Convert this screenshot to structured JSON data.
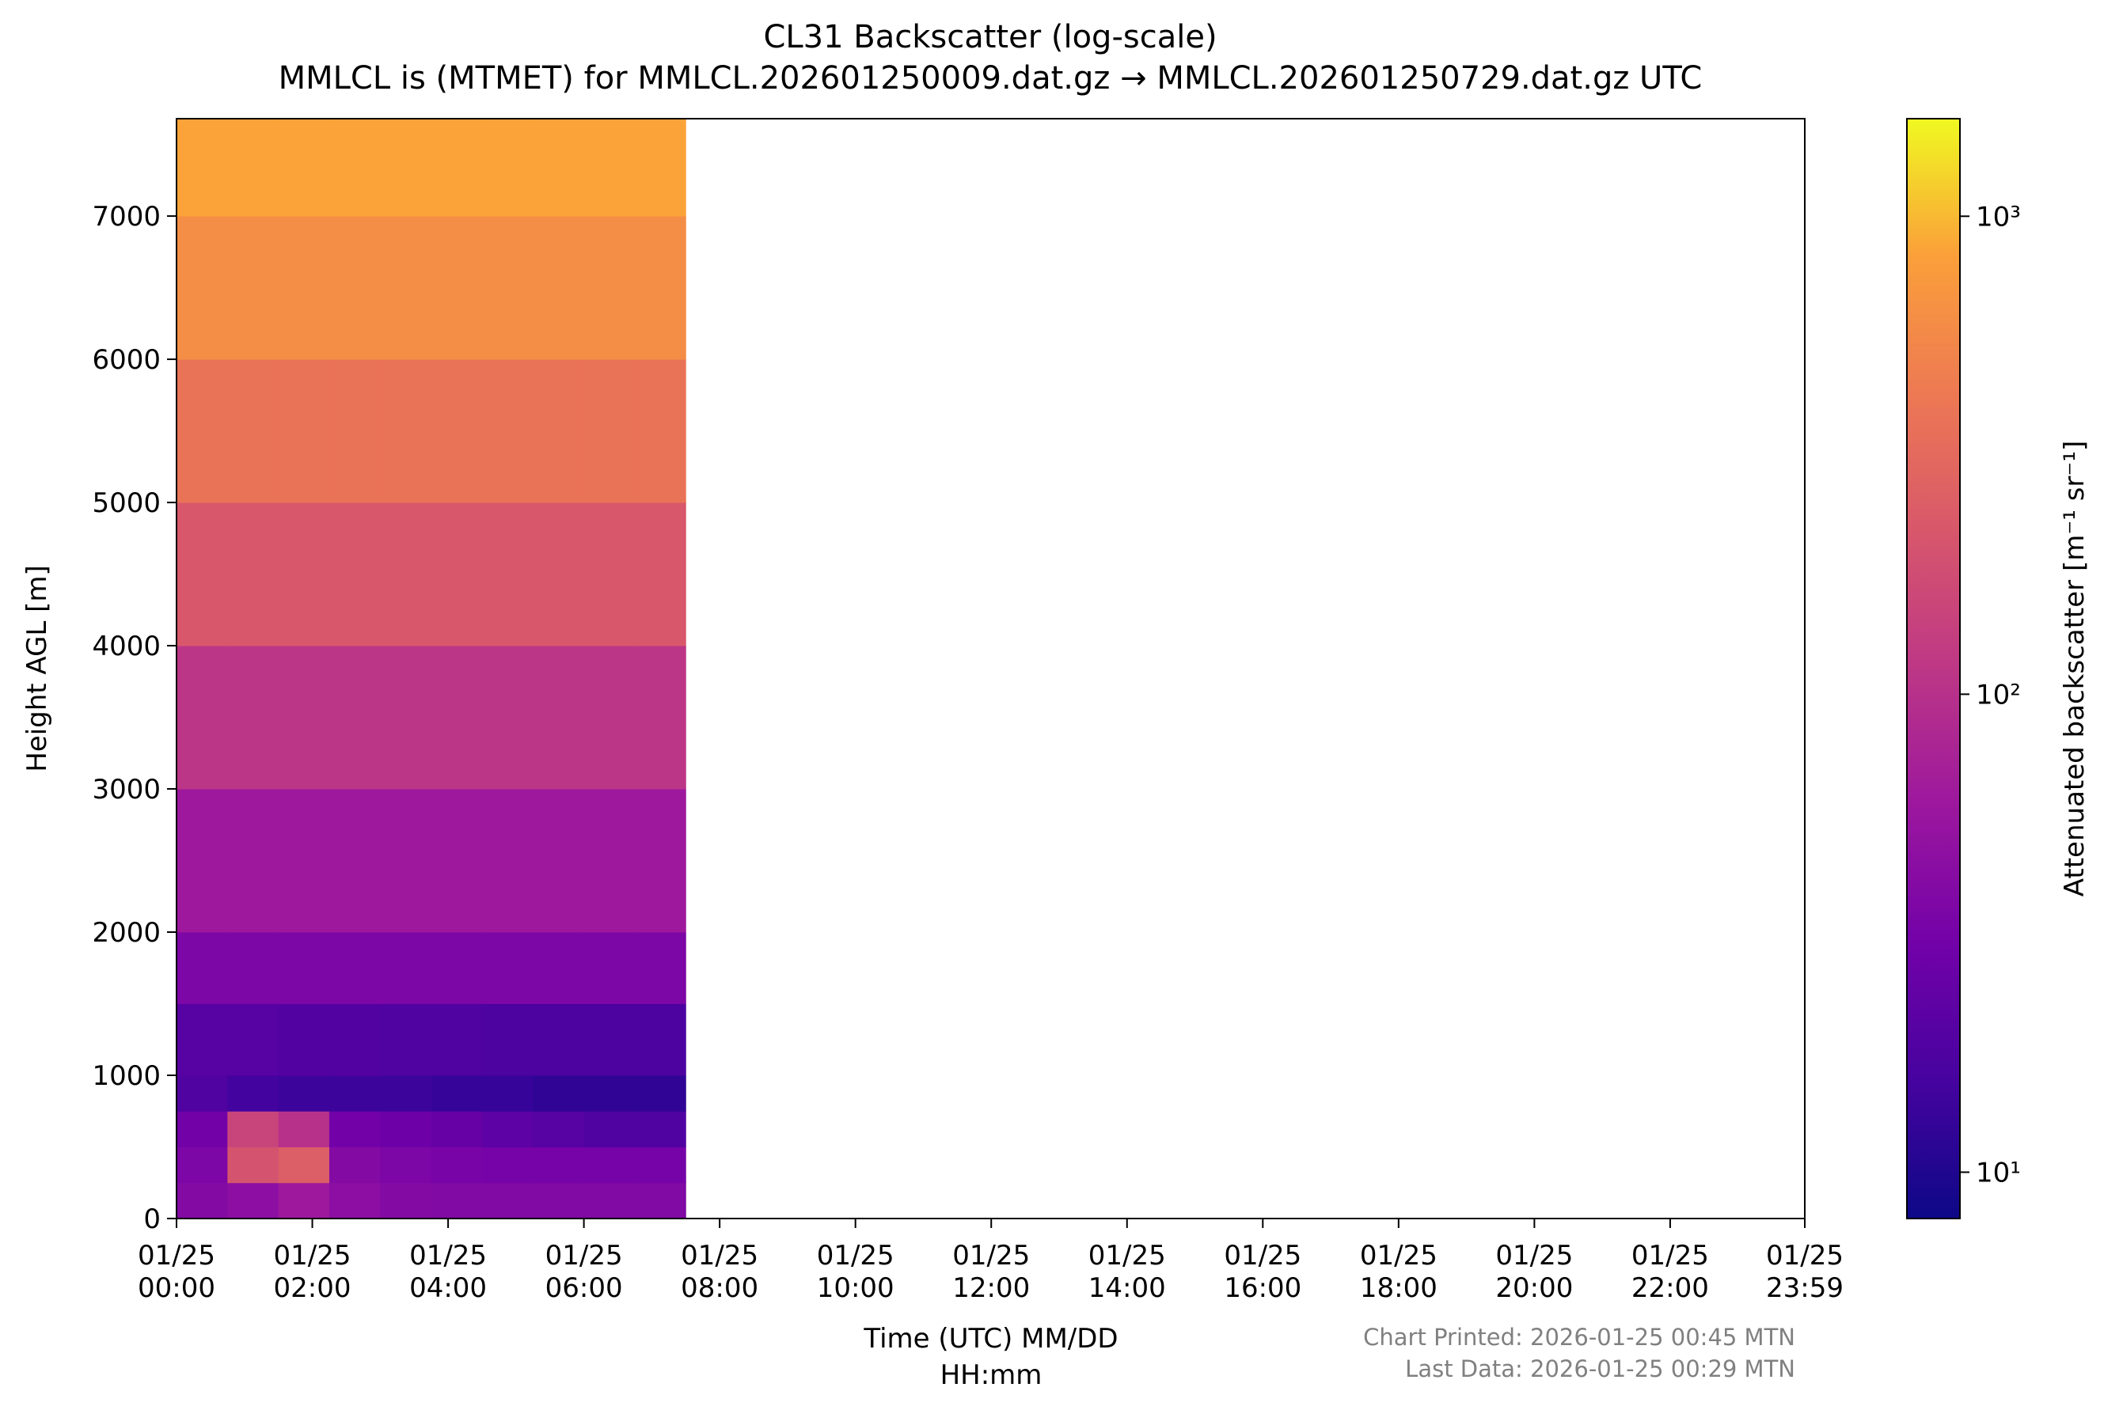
{
  "chart_data": {
    "type": "heatmap",
    "title": "CL31 Backscatter (log-scale)",
    "subtitle": "MMLCL is (MTMET) for MMLCL.202601250009.dat.gz → MMLCL.202601250729.dat.gz UTC",
    "xlabel": [
      "Time (UTC) MM/DD",
      "HH:mm"
    ],
    "ylabel": "Height AGL [m]",
    "colorbar_label": "Attenuated backscatter [m⁻¹ sr⁻¹]",
    "annotations": [
      "Chart Printed: 2026-01-25 00:45 MTN",
      "Last Data: 2026-01-25 00:29 MTN"
    ],
    "colormap": "plasma",
    "log_color": true,
    "xlim": [
      0,
      23.983
    ],
    "ylim": [
      0,
      7680
    ],
    "clim": [
      8,
      1600
    ],
    "xticks": [
      {
        "value": 0,
        "label": "01/25\n00:00"
      },
      {
        "value": 2,
        "label": "01/25\n02:00"
      },
      {
        "value": 4,
        "label": "01/25\n04:00"
      },
      {
        "value": 6,
        "label": "01/25\n06:00"
      },
      {
        "value": 8,
        "label": "01/25\n08:00"
      },
      {
        "value": 10,
        "label": "01/25\n10:00"
      },
      {
        "value": 12,
        "label": "01/25\n12:00"
      },
      {
        "value": 14,
        "label": "01/25\n14:00"
      },
      {
        "value": 16,
        "label": "01/25\n16:00"
      },
      {
        "value": 18,
        "label": "01/25\n18:00"
      },
      {
        "value": 20,
        "label": "01/25\n20:00"
      },
      {
        "value": 22,
        "label": "01/25\n22:00"
      },
      {
        "value": 23.983,
        "label": "01/25\n23:59"
      }
    ],
    "yticks": [
      0,
      1000,
      2000,
      3000,
      4000,
      5000,
      6000,
      7000
    ],
    "cticks": [
      {
        "value": 10,
        "label": "10¹"
      },
      {
        "value": 100,
        "label": "10²"
      },
      {
        "value": 1000,
        "label": "10³"
      }
    ],
    "x_edges": [
      0,
      0.75,
      1.5,
      2.25,
      3,
      3.75,
      4.5,
      5.25,
      6,
      6.75,
      7.5
    ],
    "y_edges": [
      0,
      250,
      500,
      750,
      1000,
      1500,
      2000,
      3000,
      4000,
      5000,
      6000,
      7000,
      7680
    ],
    "z": [
      [
        40,
        45,
        60,
        45,
        40,
        38,
        38,
        38,
        38,
        38
      ],
      [
        35,
        200,
        250,
        40,
        35,
        33,
        32,
        32,
        32,
        32
      ],
      [
        30,
        150,
        100,
        30,
        28,
        25,
        22,
        20,
        18,
        18
      ],
      [
        18,
        15,
        14,
        14,
        14,
        13,
        13,
        12,
        12,
        12
      ],
      [
        20,
        20,
        19,
        19,
        18,
        18,
        17,
        17,
        17,
        17
      ],
      [
        35,
        35,
        35,
        35,
        35,
        35,
        35,
        35,
        35,
        35
      ],
      [
        60,
        60,
        60,
        60,
        60,
        60,
        60,
        60,
        60,
        60
      ],
      [
        110,
        110,
        110,
        110,
        110,
        110,
        110,
        110,
        110,
        110
      ],
      [
        220,
        220,
        220,
        220,
        220,
        220,
        220,
        220,
        220,
        220
      ],
      [
        380,
        380,
        380,
        380,
        380,
        380,
        380,
        380,
        380,
        380
      ],
      [
        600,
        600,
        600,
        600,
        600,
        600,
        600,
        600,
        600,
        600
      ],
      [
        850,
        850,
        850,
        850,
        850,
        850,
        850,
        850,
        850,
        850
      ]
    ]
  }
}
